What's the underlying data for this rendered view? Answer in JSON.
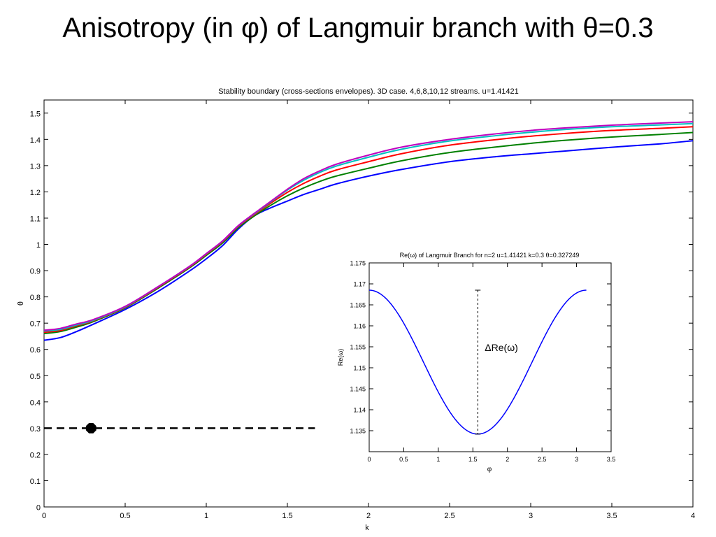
{
  "slide": {
    "title": "Anisotropy (in φ) of Langmuir branch with θ=0.3"
  },
  "chart_data": [
    {
      "type": "line",
      "title": "Stability boundary (cross-sections envelopes). 3D case. 4,6,8,10,12 streams. u=1.41421",
      "xlabel": "k",
      "ylabel": "θ",
      "xlim": [
        0,
        4
      ],
      "ylim": [
        0,
        1.55
      ],
      "xticks": [
        "0",
        "0.5",
        "1",
        "1.5",
        "2",
        "2.5",
        "3",
        "3.5",
        "4"
      ],
      "yticks": [
        "0",
        "0.1",
        "0.2",
        "0.3",
        "0.4",
        "0.5",
        "0.6",
        "0.7",
        "0.8",
        "0.9",
        "1",
        "1.1",
        "1.2",
        "1.3",
        "1.4",
        "1.5"
      ],
      "grid": false,
      "x": [
        0,
        0.1,
        0.2,
        0.3,
        0.5,
        0.7,
        0.9,
        1.0,
        1.1,
        1.2,
        1.3,
        1.4,
        1.5,
        1.6,
        1.7,
        1.8,
        2.0,
        2.2,
        2.5,
        2.8,
        3.0,
        3.2,
        3.5,
        3.8,
        4.0
      ],
      "series": [
        {
          "color": "#0000ff",
          "values": [
            0.635,
            0.645,
            0.668,
            0.695,
            0.752,
            0.82,
            0.9,
            0.945,
            0.995,
            1.06,
            1.11,
            1.14,
            1.165,
            1.19,
            1.21,
            1.23,
            1.26,
            1.285,
            1.315,
            1.335,
            1.345,
            1.355,
            1.37,
            1.383,
            1.395
          ]
        },
        {
          "color": "#008000",
          "values": [
            0.66,
            0.668,
            0.685,
            0.705,
            0.758,
            0.832,
            0.912,
            0.958,
            1.005,
            1.065,
            1.11,
            1.15,
            1.185,
            1.215,
            1.24,
            1.26,
            1.29,
            1.318,
            1.35,
            1.372,
            1.385,
            1.396,
            1.409,
            1.419,
            1.426
          ]
        },
        {
          "color": "#ff0000",
          "values": [
            0.665,
            0.672,
            0.69,
            0.708,
            0.76,
            0.835,
            0.915,
            0.962,
            1.01,
            1.07,
            1.115,
            1.158,
            1.198,
            1.232,
            1.26,
            1.283,
            1.315,
            1.345,
            1.378,
            1.4,
            1.412,
            1.422,
            1.434,
            1.442,
            1.448
          ]
        },
        {
          "color": "#00bfbf",
          "values": [
            0.67,
            0.676,
            0.693,
            0.71,
            0.762,
            0.837,
            0.917,
            0.964,
            1.012,
            1.072,
            1.118,
            1.163,
            1.207,
            1.244,
            1.274,
            1.298,
            1.332,
            1.362,
            1.394,
            1.415,
            1.427,
            1.437,
            1.448,
            1.455,
            1.46
          ]
        },
        {
          "color": "#bf00bf",
          "values": [
            0.673,
            0.68,
            0.697,
            0.713,
            0.764,
            0.838,
            0.918,
            0.965,
            1.013,
            1.073,
            1.12,
            1.165,
            1.21,
            1.25,
            1.28,
            1.305,
            1.34,
            1.37,
            1.4,
            1.422,
            1.434,
            1.443,
            1.454,
            1.462,
            1.467
          ]
        }
      ],
      "annotations": [
        {
          "type": "dashed-line",
          "y": 0.3,
          "x_range": [
            0,
            1.67
          ],
          "color": "#000000"
        },
        {
          "type": "marker",
          "shape": "circle",
          "x": 0.29,
          "y": 0.3,
          "color": "#000000"
        }
      ]
    },
    {
      "type": "line",
      "title": "Re(ω) of Langmuir Branch for n=2 u=1.41421 k=0.3 θ=0.327249",
      "xlabel": "φ",
      "ylabel": "Re(ω)",
      "xlim": [
        0,
        3.5
      ],
      "ylim": [
        1.13,
        1.175
      ],
      "xticks": [
        "0",
        "0.5",
        "1",
        "1.5",
        "2",
        "2.5",
        "3",
        "3.5"
      ],
      "yticks": [
        "1.135",
        "1.14",
        "1.145",
        "1.15",
        "1.155",
        "1.16",
        "1.165",
        "1.17",
        "1.175"
      ],
      "grid": false,
      "series": [
        {
          "color": "#0000ff",
          "function": "cosine",
          "max": 1.1685,
          "min": 1.1342,
          "period": 3.1416,
          "phi_range": [
            0,
            3.1416
          ]
        }
      ],
      "annotations": [
        {
          "type": "dashed-errorbar",
          "x": 1.5708,
          "y_range": [
            1.1342,
            1.1685
          ],
          "label": "ΔRe(ω)"
        }
      ]
    }
  ]
}
